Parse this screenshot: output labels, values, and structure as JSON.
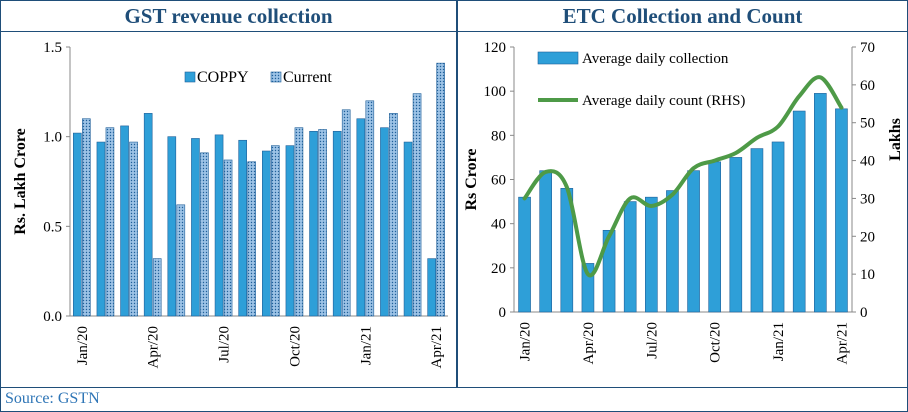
{
  "source": "Source: GSTN",
  "chart_data": [
    {
      "type": "bar",
      "title": "GST revenue collection",
      "ylabel": "Rs. Lakh Crore",
      "xlabel": "",
      "ylim": [
        0,
        1.5
      ],
      "yticks": [
        "0.0",
        "0.5",
        "1.0",
        "1.5"
      ],
      "x_tick_labels": [
        "Jan/20",
        "Apr/20",
        "Jul/20",
        "Oct/20",
        "Jan/21",
        "Apr/21"
      ],
      "x_tick_every": 3,
      "categories": [
        "Jan/20",
        "Feb/20",
        "Mar/20",
        "Apr/20",
        "May/20",
        "Jun/20",
        "Jul/20",
        "Aug/20",
        "Sep/20",
        "Oct/20",
        "Nov/20",
        "Dec/20",
        "Jan/21",
        "Feb/21",
        "Mar/21",
        "Apr/21"
      ],
      "series": [
        {
          "name": "COPPY",
          "color": "#2e9fd8",
          "values": [
            1.02,
            0.97,
            1.06,
            1.13,
            1.0,
            0.99,
            1.01,
            0.98,
            0.92,
            0.95,
            1.03,
            1.03,
            1.1,
            1.05,
            0.97,
            0.32
          ]
        },
        {
          "name": "Current",
          "color": "#9dc3e6",
          "pattern": "dots",
          "values": [
            1.1,
            1.05,
            0.97,
            0.32,
            0.62,
            0.91,
            0.87,
            0.86,
            0.95,
            1.05,
            1.04,
            1.15,
            1.2,
            1.13,
            1.24,
            1.41
          ]
        }
      ],
      "legend": "top-center",
      "grid": false
    },
    {
      "type": "bar+line",
      "title": "ETC Collection and Count",
      "ylabel": "Rs Crore",
      "y2label": "Lakhs",
      "xlabel": "",
      "ylim": [
        0,
        120
      ],
      "y2lim": [
        0,
        70
      ],
      "yticks": [
        "0",
        "20",
        "40",
        "60",
        "80",
        "100",
        "120"
      ],
      "y2ticks": [
        "0",
        "10",
        "20",
        "30",
        "40",
        "50",
        "60",
        "70"
      ],
      "x_tick_labels": [
        "Jan/20",
        "Apr/20",
        "Jul/20",
        "Oct/20",
        "Jan/21",
        "Apr/21"
      ],
      "x_tick_every": 3,
      "categories": [
        "Jan/20",
        "Feb/20",
        "Mar/20",
        "Apr/20",
        "May/20",
        "Jun/20",
        "Jul/20",
        "Aug/20",
        "Sep/20",
        "Oct/20",
        "Nov/20",
        "Dec/20",
        "Jan/21",
        "Feb/21",
        "Mar/21",
        "Apr/21"
      ],
      "series": [
        {
          "name": "Average daily collection",
          "kind": "bar",
          "axis": "left",
          "color": "#2e9fd8",
          "values": [
            52,
            64,
            56,
            22,
            37,
            50,
            52,
            55,
            64,
            68,
            70,
            74,
            77,
            91,
            99,
            92
          ]
        },
        {
          "name": "Average daily count (RHS)",
          "kind": "line",
          "axis": "right",
          "color": "#4e9a47",
          "values": [
            30,
            37,
            33,
            10,
            20,
            30,
            28,
            31,
            38,
            40,
            42,
            46,
            49,
            57,
            62,
            54
          ]
        }
      ],
      "legend": "top-left",
      "grid": false
    }
  ]
}
